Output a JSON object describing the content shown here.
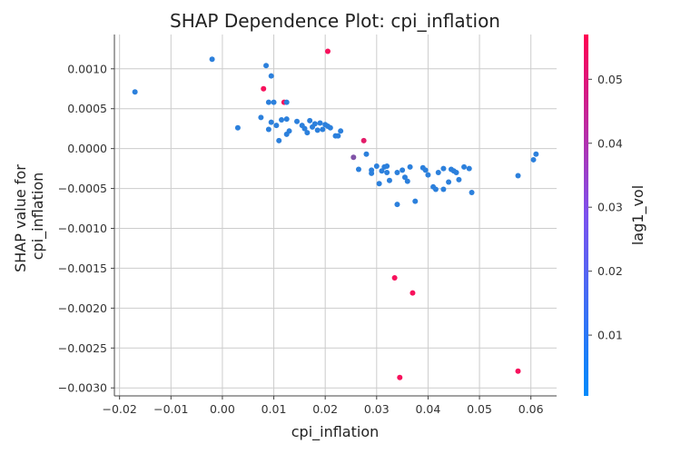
{
  "chart_data": {
    "type": "scatter",
    "title": "SHAP Dependence Plot: cpi_inflation",
    "xlabel": "cpi_inflation",
    "ylabel_lines": [
      "SHAP value for",
      "cpi_inflation"
    ],
    "xlim": [
      -0.021,
      0.065
    ],
    "ylim": [
      -0.0031,
      0.00143
    ],
    "x_ticks": [
      -0.02,
      -0.01,
      0.0,
      0.01,
      0.02,
      0.03,
      0.04,
      0.05,
      0.06
    ],
    "x_tick_labels": [
      "−0.02",
      "−0.01",
      "0.00",
      "0.01",
      "0.02",
      "0.03",
      "0.04",
      "0.05",
      "0.06"
    ],
    "y_ticks": [
      0.001,
      0.0005,
      0.0,
      -0.0005,
      -0.001,
      -0.0015,
      -0.002,
      -0.0025,
      -0.003
    ],
    "y_tick_labels": [
      "0.0010",
      "0.0005",
      "0.0000",
      "−0.0005",
      "−0.0010",
      "−0.0015",
      "−0.0020",
      "−0.0025",
      "−0.0030"
    ],
    "grid": true,
    "colorbar": {
      "label": "lag1_vol",
      "range": [
        0.0005,
        0.057
      ],
      "ticks": [
        0.01,
        0.02,
        0.03,
        0.04,
        0.05
      ],
      "tick_labels": [
        "0.01",
        "0.02",
        "0.03",
        "0.04",
        "0.05"
      ],
      "color_low": "#1e88e5",
      "color_high": "#ff0d57"
    },
    "points": [
      {
        "x": -0.017,
        "y": 0.00071,
        "c": 0.004
      },
      {
        "x": -0.002,
        "y": 0.00112,
        "c": 0.004
      },
      {
        "x": 0.003,
        "y": 0.00026,
        "c": 0.004
      },
      {
        "x": 0.0075,
        "y": 0.00039,
        "c": 0.004
      },
      {
        "x": 0.008,
        "y": 0.00075,
        "c": 0.055
      },
      {
        "x": 0.0085,
        "y": 0.00104,
        "c": 0.004
      },
      {
        "x": 0.009,
        "y": 0.00058,
        "c": 0.004
      },
      {
        "x": 0.009,
        "y": 0.00024,
        "c": 0.004
      },
      {
        "x": 0.0095,
        "y": 0.00091,
        "c": 0.004
      },
      {
        "x": 0.0095,
        "y": 0.00033,
        "c": 0.004
      },
      {
        "x": 0.01,
        "y": 0.00058,
        "c": 0.004
      },
      {
        "x": 0.0105,
        "y": 0.00029,
        "c": 0.004
      },
      {
        "x": 0.011,
        "y": 0.0001,
        "c": 0.004
      },
      {
        "x": 0.0115,
        "y": 0.00036,
        "c": 0.004
      },
      {
        "x": 0.012,
        "y": 0.00058,
        "c": 0.055
      },
      {
        "x": 0.0125,
        "y": 0.00058,
        "c": 0.004
      },
      {
        "x": 0.0125,
        "y": 0.00018,
        "c": 0.004
      },
      {
        "x": 0.0125,
        "y": 0.00037,
        "c": 0.004
      },
      {
        "x": 0.013,
        "y": 0.00022,
        "c": 0.004
      },
      {
        "x": 0.0145,
        "y": 0.00034,
        "c": 0.004
      },
      {
        "x": 0.0155,
        "y": 0.00029,
        "c": 0.004
      },
      {
        "x": 0.016,
        "y": 0.00025,
        "c": 0.004
      },
      {
        "x": 0.0165,
        "y": 0.0002,
        "c": 0.004
      },
      {
        "x": 0.017,
        "y": 0.00035,
        "c": 0.004
      },
      {
        "x": 0.0175,
        "y": 0.00027,
        "c": 0.004
      },
      {
        "x": 0.018,
        "y": 0.00031,
        "c": 0.004
      },
      {
        "x": 0.0185,
        "y": 0.00023,
        "c": 0.004
      },
      {
        "x": 0.019,
        "y": 0.00032,
        "c": 0.004
      },
      {
        "x": 0.0195,
        "y": 0.00024,
        "c": 0.004
      },
      {
        "x": 0.02,
        "y": 0.0003,
        "c": 0.004
      },
      {
        "x": 0.0205,
        "y": 0.00122,
        "c": 0.055
      },
      {
        "x": 0.0205,
        "y": 0.00028,
        "c": 0.004
      },
      {
        "x": 0.021,
        "y": 0.00026,
        "c": 0.004
      },
      {
        "x": 0.022,
        "y": 0.00016,
        "c": 0.004
      },
      {
        "x": 0.0225,
        "y": 0.00016,
        "c": 0.004
      },
      {
        "x": 0.023,
        "y": 0.00022,
        "c": 0.004
      },
      {
        "x": 0.0255,
        "y": -0.00011,
        "c": 0.025
      },
      {
        "x": 0.0265,
        "y": -0.00026,
        "c": 0.004
      },
      {
        "x": 0.0275,
        "y": 0.0001,
        "c": 0.05
      },
      {
        "x": 0.028,
        "y": -7e-05,
        "c": 0.004
      },
      {
        "x": 0.029,
        "y": -0.00027,
        "c": 0.004
      },
      {
        "x": 0.029,
        "y": -0.00031,
        "c": 0.004
      },
      {
        "x": 0.03,
        "y": -0.00022,
        "c": 0.004
      },
      {
        "x": 0.0305,
        "y": -0.00044,
        "c": 0.004
      },
      {
        "x": 0.031,
        "y": -0.00028,
        "c": 0.004
      },
      {
        "x": 0.0315,
        "y": -0.00023,
        "c": 0.004
      },
      {
        "x": 0.032,
        "y": -0.00022,
        "c": 0.004
      },
      {
        "x": 0.032,
        "y": -0.0003,
        "c": 0.004
      },
      {
        "x": 0.0325,
        "y": -0.0004,
        "c": 0.004
      },
      {
        "x": 0.0335,
        "y": -0.00162,
        "c": 0.055
      },
      {
        "x": 0.034,
        "y": -0.0003,
        "c": 0.004
      },
      {
        "x": 0.034,
        "y": -0.0007,
        "c": 0.004
      },
      {
        "x": 0.0345,
        "y": -0.00287,
        "c": 0.055
      },
      {
        "x": 0.035,
        "y": -0.00027,
        "c": 0.004
      },
      {
        "x": 0.0355,
        "y": -0.00036,
        "c": 0.004
      },
      {
        "x": 0.036,
        "y": -0.00041,
        "c": 0.004
      },
      {
        "x": 0.0365,
        "y": -0.00023,
        "c": 0.004
      },
      {
        "x": 0.037,
        "y": -0.00181,
        "c": 0.055
      },
      {
        "x": 0.0375,
        "y": -0.00066,
        "c": 0.004
      },
      {
        "x": 0.039,
        "y": -0.00024,
        "c": 0.004
      },
      {
        "x": 0.0395,
        "y": -0.00027,
        "c": 0.004
      },
      {
        "x": 0.04,
        "y": -0.00033,
        "c": 0.004
      },
      {
        "x": 0.041,
        "y": -0.00048,
        "c": 0.004
      },
      {
        "x": 0.0415,
        "y": -0.00051,
        "c": 0.004
      },
      {
        "x": 0.042,
        "y": -0.0003,
        "c": 0.004
      },
      {
        "x": 0.043,
        "y": -0.00025,
        "c": 0.004
      },
      {
        "x": 0.043,
        "y": -0.00051,
        "c": 0.004
      },
      {
        "x": 0.044,
        "y": -0.00042,
        "c": 0.004
      },
      {
        "x": 0.0445,
        "y": -0.00026,
        "c": 0.004
      },
      {
        "x": 0.045,
        "y": -0.00028,
        "c": 0.004
      },
      {
        "x": 0.0455,
        "y": -0.0003,
        "c": 0.004
      },
      {
        "x": 0.046,
        "y": -0.00039,
        "c": 0.004
      },
      {
        "x": 0.047,
        "y": -0.00023,
        "c": 0.004
      },
      {
        "x": 0.048,
        "y": -0.00025,
        "c": 0.004
      },
      {
        "x": 0.0485,
        "y": -0.00055,
        "c": 0.004
      },
      {
        "x": 0.0575,
        "y": -0.00034,
        "c": 0.004
      },
      {
        "x": 0.0575,
        "y": -0.00279,
        "c": 0.055
      },
      {
        "x": 0.0605,
        "y": -0.00014,
        "c": 0.004
      },
      {
        "x": 0.061,
        "y": -7e-05,
        "c": 0.004
      }
    ]
  }
}
